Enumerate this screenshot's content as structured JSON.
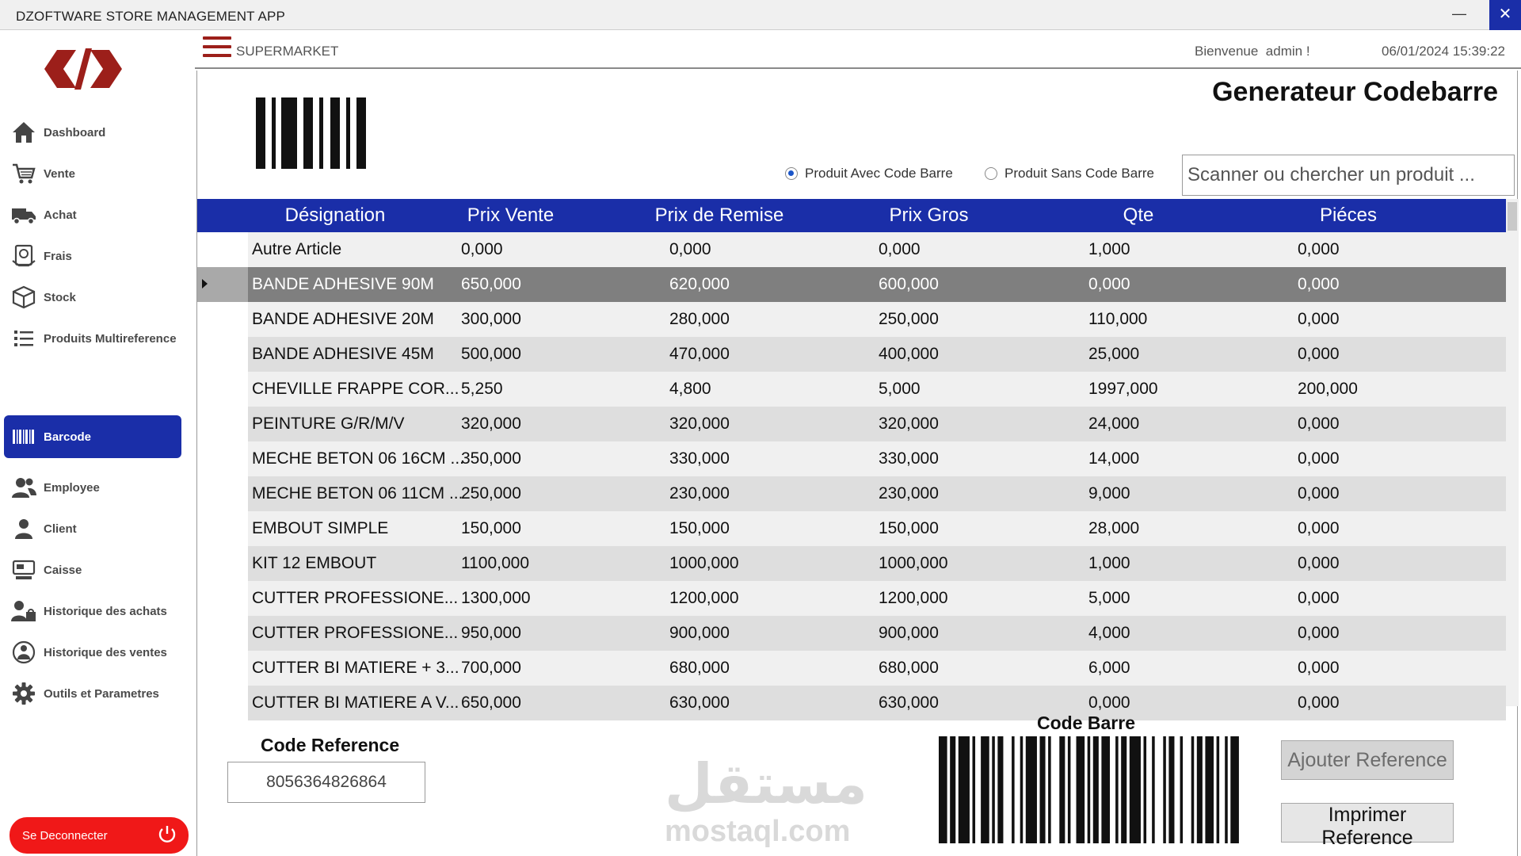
{
  "app": {
    "title": "DZOFTWARE STORE MANAGEMENT APP",
    "minimize_glyph": "—",
    "close_glyph": "✕"
  },
  "colors": {
    "accent": "#1a2ea8",
    "logo": "#9c1f1a",
    "logout": "#f01818"
  },
  "sidebar": {
    "items": [
      {
        "label": "Dashboard",
        "icon": "home-icon"
      },
      {
        "label": "Vente",
        "icon": "cart-icon"
      },
      {
        "label": "Achat",
        "icon": "truck-icon"
      },
      {
        "label": "Frais",
        "icon": "receipt-icon"
      },
      {
        "label": "Stock",
        "icon": "box-icon"
      },
      {
        "label": "Produits Multireference",
        "icon": "list-icon"
      },
      {
        "label": "Barcode",
        "icon": "barcode-icon",
        "active": true
      },
      {
        "label": "Employee",
        "icon": "users-icon"
      },
      {
        "label": "Client",
        "icon": "user-icon"
      },
      {
        "label": "Caisse",
        "icon": "register-icon"
      },
      {
        "label": "Historique des achats",
        "icon": "purchase-history-icon"
      },
      {
        "label": "Historique des ventes",
        "icon": "sales-history-icon"
      },
      {
        "label": "Outils et Parametres",
        "icon": "gear-icon"
      }
    ],
    "logout_label": "Se Deconnecter"
  },
  "header": {
    "shop": "SUPERMARKET",
    "welcome": "Bienvenue  admin !",
    "datetime": "06/01/2024 15:39:22"
  },
  "page": {
    "title": "Generateur Codebarre",
    "radio_with": "Produit Avec Code Barre",
    "radio_without": "Produit Sans Code Barre",
    "radio_selected": "with",
    "search_placeholder": "Scanner ou chercher un produit ..."
  },
  "table": {
    "columns": [
      "Désignation",
      "Prix Vente",
      "Prix de Remise",
      "Prix Gros",
      "Qte",
      "Piéces"
    ],
    "selected_row": 1,
    "rows": [
      [
        "Autre Article",
        "0,000",
        "0,000",
        "0,000",
        "1,000",
        "0,000"
      ],
      [
        "BANDE ADHESIVE 90M",
        "650,000",
        "620,000",
        "600,000",
        "0,000",
        "0,000"
      ],
      [
        "BANDE ADHESIVE 20M",
        "300,000",
        "280,000",
        "250,000",
        "110,000",
        "0,000"
      ],
      [
        "BANDE ADHESIVE 45M",
        "500,000",
        "470,000",
        "400,000",
        "25,000",
        "0,000"
      ],
      [
        "CHEVILLE FRAPPE COR...",
        "5,250",
        "4,800",
        "5,000",
        "1997,000",
        "200,000"
      ],
      [
        "PEINTURE G/R/M/V",
        "320,000",
        "320,000",
        "320,000",
        "24,000",
        "0,000"
      ],
      [
        "MECHE BETON 06 16CM ...",
        "350,000",
        "330,000",
        "330,000",
        "14,000",
        "0,000"
      ],
      [
        "MECHE BETON 06 11CM ...",
        "250,000",
        "230,000",
        "230,000",
        "9,000",
        "0,000"
      ],
      [
        "EMBOUT SIMPLE",
        "150,000",
        "150,000",
        "150,000",
        "28,000",
        "0,000"
      ],
      [
        "KIT 12 EMBOUT",
        "1100,000",
        "1000,000",
        "1000,000",
        "1,000",
        "0,000"
      ],
      [
        "CUTTER PROFESSIONE...",
        "1300,000",
        "1200,000",
        "1200,000",
        "5,000",
        "0,000"
      ],
      [
        "CUTTER PROFESSIONE...",
        "950,000",
        "900,000",
        "900,000",
        "4,000",
        "0,000"
      ],
      [
        "CUTTER BI MATIERE + 3...",
        "700,000",
        "680,000",
        "680,000",
        "6,000",
        "0,000"
      ],
      [
        "CUTTER BI MATIERE A V...",
        "650,000",
        "630,000",
        "630,000",
        "0,000",
        "0,000"
      ]
    ]
  },
  "bottom": {
    "code_reference_label": "Code Reference",
    "code_reference_value": "8056364826864",
    "code_barre_label": "Code Barre",
    "add_button": "Ajouter Reference",
    "print_button": "Imprimer Reference",
    "watermark_ar": "مستقل",
    "watermark_en": "mostaql.com"
  }
}
